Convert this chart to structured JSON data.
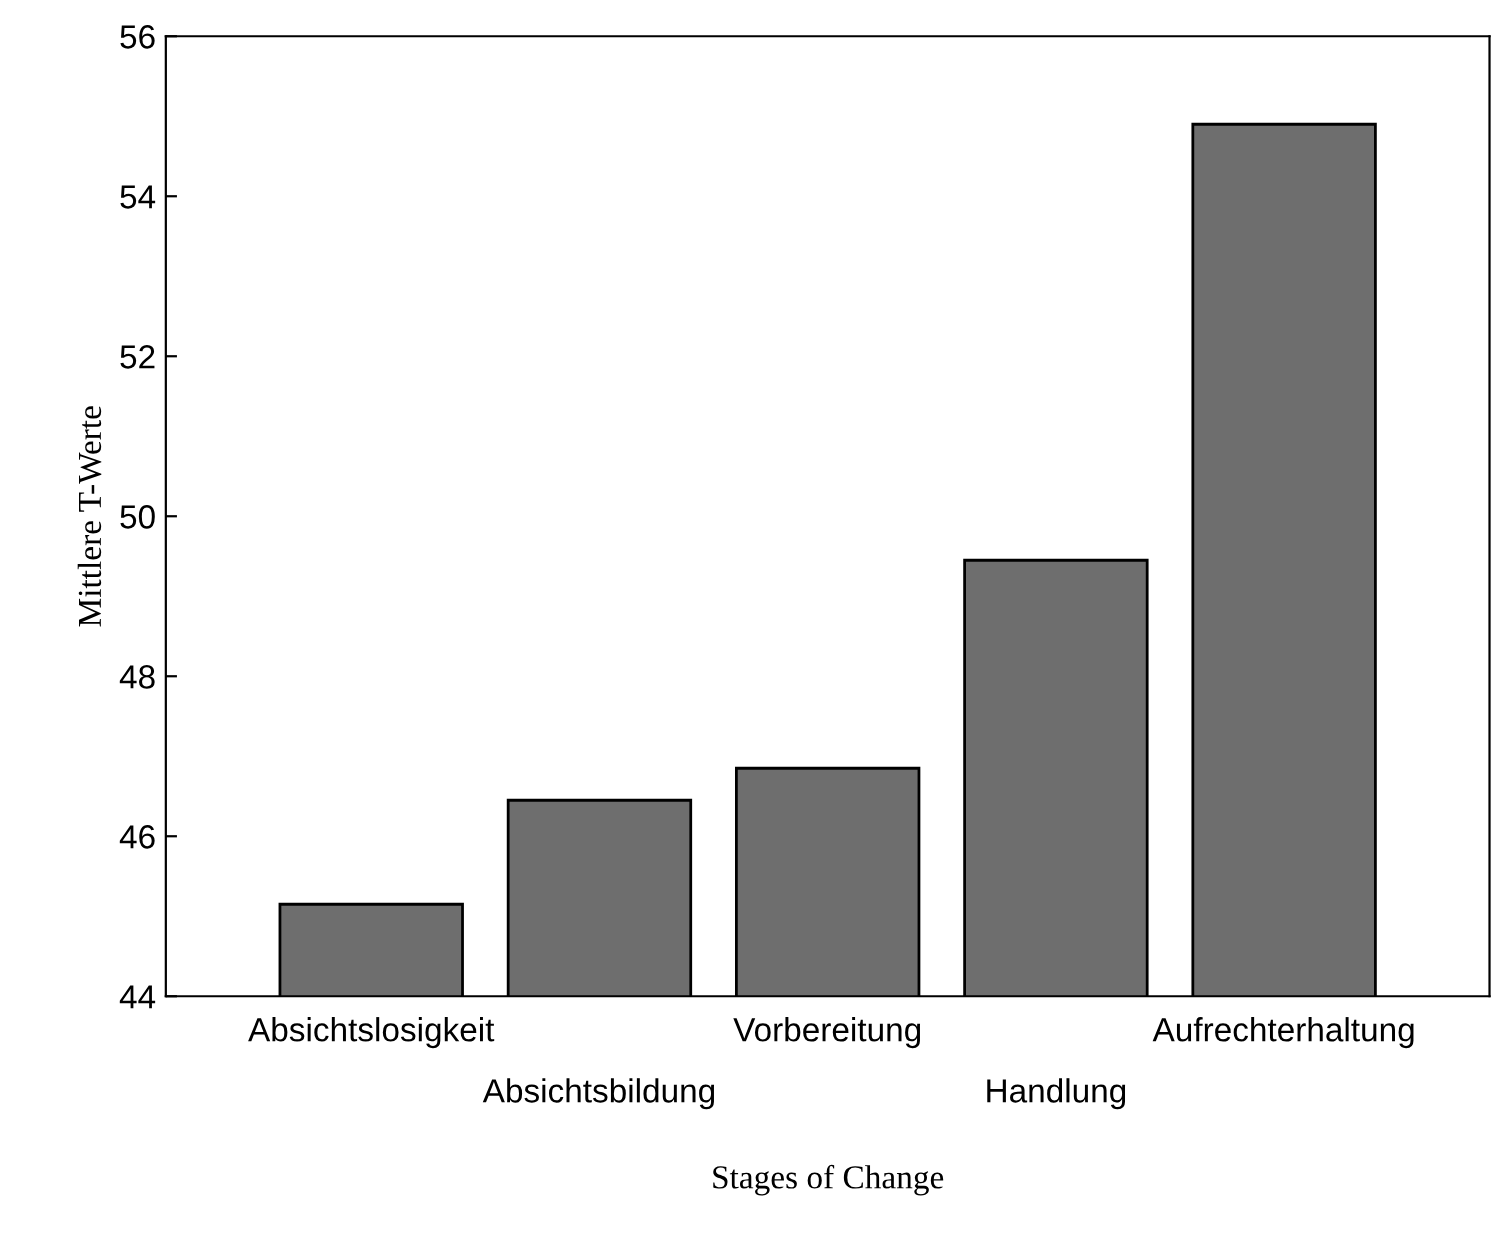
{
  "chart_data": {
    "type": "bar",
    "xlabel": "Stages of Change",
    "ylabel": "Mittlere T-Werte",
    "categories": [
      "Absichtslosigkeit",
      "Absichtsbildung",
      "Vorbereitung",
      "Handlung",
      "Aufrechterhaltung"
    ],
    "values": [
      45.15,
      46.45,
      46.85,
      49.45,
      54.9
    ],
    "color": "#6e6e6e",
    "ylim": [
      44,
      56
    ],
    "yticks": [
      44,
      46,
      48,
      50,
      52,
      54,
      56
    ],
    "grid": false
  }
}
